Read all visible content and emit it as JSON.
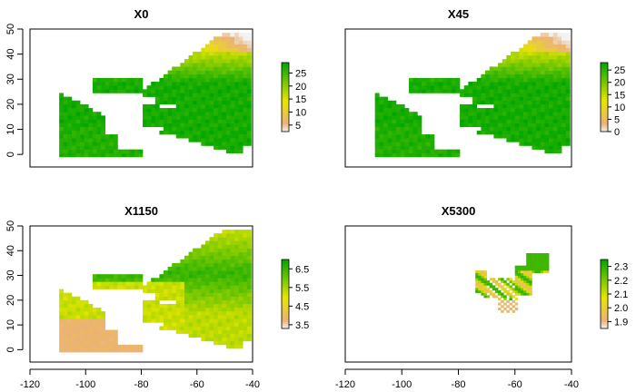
{
  "chart_data": [
    {
      "type": "heatmap",
      "title": "X0",
      "xlim": [
        -120,
        -40
      ],
      "ylim": [
        -5,
        50
      ],
      "yticks": [
        0,
        10,
        20,
        30,
        40,
        50
      ],
      "xticks": [],
      "legend": {
        "min": 2.5,
        "max": 29,
        "ticks": [
          5,
          10,
          15,
          20,
          25
        ]
      },
      "pattern": "surface"
    },
    {
      "type": "heatmap",
      "title": "X45",
      "xlim": [
        -120,
        -40
      ],
      "ylim": [
        -5,
        50
      ],
      "yticks": [],
      "xticks": [],
      "legend": {
        "min": 0,
        "max": 28,
        "ticks": [
          0,
          5,
          10,
          15,
          20,
          25
        ]
      },
      "pattern": "surface"
    },
    {
      "type": "heatmap",
      "title": "X1150",
      "xlim": [
        -120,
        -40
      ],
      "ylim": [
        -5,
        50
      ],
      "yticks": [
        0,
        10,
        20,
        30,
        40,
        50
      ],
      "xticks": [
        -120,
        -100,
        -80,
        -60,
        -40
      ],
      "legend": {
        "min": 3.3,
        "max": 7.0,
        "ticks": [
          3.5,
          4.5,
          5.5,
          6.5
        ]
      },
      "pattern": "deep"
    },
    {
      "type": "heatmap",
      "title": "X5300",
      "xlim": [
        -120,
        -40
      ],
      "ylim": [
        -5,
        50
      ],
      "yticks": [],
      "xticks": [
        -120,
        -100,
        -80,
        -60,
        -40
      ],
      "legend": {
        "min": 1.85,
        "max": 2.35,
        "ticks": [
          1.9,
          2.0,
          2.1,
          2.2,
          2.3
        ]
      },
      "pattern": "abyss"
    }
  ],
  "colors": {
    "high": "#00a600",
    "mid": "#e6e600",
    "low": "#ecb176",
    "lowest": "#f2f2f2"
  }
}
